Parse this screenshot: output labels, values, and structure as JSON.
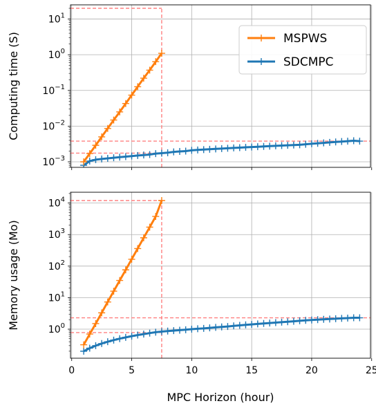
{
  "chart_data": [
    {
      "type": "line",
      "ylabel": "Computing time (S)",
      "xlabel": "",
      "yscale": "log",
      "xlim": [
        -0.1,
        24.9
      ],
      "ylim": [
        0.0007,
        25
      ],
      "x_ticks": [
        0,
        5,
        10,
        15,
        20,
        25
      ],
      "x_tick_labels": [
        "",
        "",
        "",
        "",
        "",
        ""
      ],
      "y_ticks": [
        {
          "value": 0.001,
          "base": "10",
          "exp": "−3"
        },
        {
          "value": 0.01,
          "base": "10",
          "exp": "−2"
        },
        {
          "value": 0.1,
          "base": "10",
          "exp": "−1"
        },
        {
          "value": 1,
          "base": "10",
          "exp": "0"
        },
        {
          "value": 10,
          "base": "10",
          "exp": "1"
        }
      ],
      "grid": true,
      "legend": {
        "position": "top-right",
        "entries": [
          "MSPWS",
          "SDCMPC"
        ]
      },
      "series": [
        {
          "name": "MSPWS",
          "color": "#ff7f0e",
          "x": [
            1,
            1.5,
            2,
            2.5,
            3,
            3.5,
            4,
            4.5,
            5,
            5.5,
            6,
            6.5,
            7,
            7.5
          ],
          "y": [
            0.001,
            0.0017,
            0.0029,
            0.005,
            0.0086,
            0.0148,
            0.025,
            0.043,
            0.074,
            0.127,
            0.22,
            0.37,
            0.64,
            1.1
          ]
        },
        {
          "name": "SDCMPC",
          "color": "#1f77b4",
          "x": [
            1,
            1.5,
            2,
            2.5,
            3,
            3.5,
            4,
            4.5,
            5,
            5.5,
            6,
            6.5,
            7,
            7.5,
            8,
            8.5,
            9,
            9.5,
            10,
            10.5,
            11,
            11.5,
            12,
            12.5,
            13,
            13.5,
            14,
            14.5,
            15,
            15.5,
            16,
            16.5,
            17,
            17.5,
            18,
            18.5,
            19,
            19.5,
            20,
            20.5,
            21,
            21.5,
            22,
            22.5,
            23,
            23.5,
            24
          ],
          "y": [
            0.0008,
            0.00105,
            0.00115,
            0.0012,
            0.00125,
            0.0013,
            0.00135,
            0.0014,
            0.00145,
            0.0015,
            0.00155,
            0.0016,
            0.0017,
            0.00175,
            0.0018,
            0.0019,
            0.00195,
            0.002,
            0.0021,
            0.00215,
            0.0022,
            0.00225,
            0.0023,
            0.00235,
            0.0024,
            0.00245,
            0.0025,
            0.00255,
            0.0026,
            0.00265,
            0.0027,
            0.00275,
            0.0028,
            0.00285,
            0.0029,
            0.00295,
            0.003,
            0.0031,
            0.0032,
            0.0033,
            0.0034,
            0.0035,
            0.0036,
            0.0037,
            0.0038,
            0.0039,
            0.0038
          ]
        }
      ],
      "reference_lines": [
        {
          "x0": -0.1,
          "x1": 7.5,
          "y": 20
        },
        {
          "x0": -0.1,
          "x1": 24.9,
          "y": 0.0038
        },
        {
          "x0": -0.1,
          "x1": 7.5,
          "y": 0.00175
        },
        {
          "x": 7.5,
          "y0": 0.0007,
          "y1": 20
        }
      ]
    },
    {
      "type": "line",
      "ylabel": "Memory usage (Mo)",
      "xlabel": "MPC Horizon  (hour)",
      "yscale": "log",
      "xlim": [
        -0.1,
        24.9
      ],
      "ylim": [
        0.12,
        22000
      ],
      "x_ticks": [
        0,
        5,
        10,
        15,
        20,
        25
      ],
      "x_tick_labels": [
        "0",
        "5",
        "10",
        "15",
        "20",
        "25"
      ],
      "y_ticks": [
        {
          "value": 1,
          "base": "10",
          "exp": "0"
        },
        {
          "value": 10,
          "base": "10",
          "exp": "1"
        },
        {
          "value": 100,
          "base": "10",
          "exp": "2"
        },
        {
          "value": 1000,
          "base": "10",
          "exp": "3"
        },
        {
          "value": 10000,
          "base": "10",
          "exp": "4"
        }
      ],
      "grid": true,
      "series": [
        {
          "name": "MSPWS",
          "color": "#ff7f0e",
          "x": [
            1,
            1.5,
            2,
            2.5,
            3,
            3.5,
            4,
            4.5,
            5,
            5.5,
            6,
            6.5,
            7,
            7.5
          ],
          "y": [
            0.32,
            0.7,
            1.5,
            3.3,
            7.3,
            16,
            35,
            76,
            165,
            360,
            790,
            1720,
            3760,
            12000
          ]
        },
        {
          "name": "SDCMPC",
          "color": "#1f77b4",
          "x": [
            1,
            1.5,
            2,
            2.5,
            3,
            3.5,
            4,
            4.5,
            5,
            5.5,
            6,
            6.5,
            7,
            7.5,
            8,
            8.5,
            9,
            9.5,
            10,
            10.5,
            11,
            11.5,
            12,
            12.5,
            13,
            13.5,
            14,
            14.5,
            15,
            15.5,
            16,
            16.5,
            17,
            17.5,
            18,
            18.5,
            19,
            19.5,
            20,
            20.5,
            21,
            21.5,
            22,
            22.5,
            23,
            23.5,
            24
          ],
          "y": [
            0.2,
            0.25,
            0.3,
            0.35,
            0.4,
            0.45,
            0.5,
            0.55,
            0.6,
            0.65,
            0.7,
            0.75,
            0.8,
            0.84,
            0.87,
            0.9,
            0.93,
            0.96,
            1.0,
            1.03,
            1.06,
            1.1,
            1.14,
            1.18,
            1.22,
            1.27,
            1.32,
            1.37,
            1.42,
            1.47,
            1.52,
            1.57,
            1.62,
            1.67,
            1.72,
            1.78,
            1.84,
            1.9,
            1.95,
            2.0,
            2.05,
            2.1,
            2.15,
            2.2,
            2.25,
            2.3,
            2.3
          ]
        }
      ],
      "reference_lines": [
        {
          "x0": -0.1,
          "x1": 7.5,
          "y": 12000
        },
        {
          "x0": -0.1,
          "x1": 24.9,
          "y": 2.3
        },
        {
          "x0": -0.1,
          "x1": 7.5,
          "y": 0.78
        },
        {
          "x": 7.5,
          "y0": 0.12,
          "y1": 12000
        }
      ]
    }
  ],
  "colors": {
    "reference": "#ff8080",
    "grid": "#b0b0b0"
  }
}
